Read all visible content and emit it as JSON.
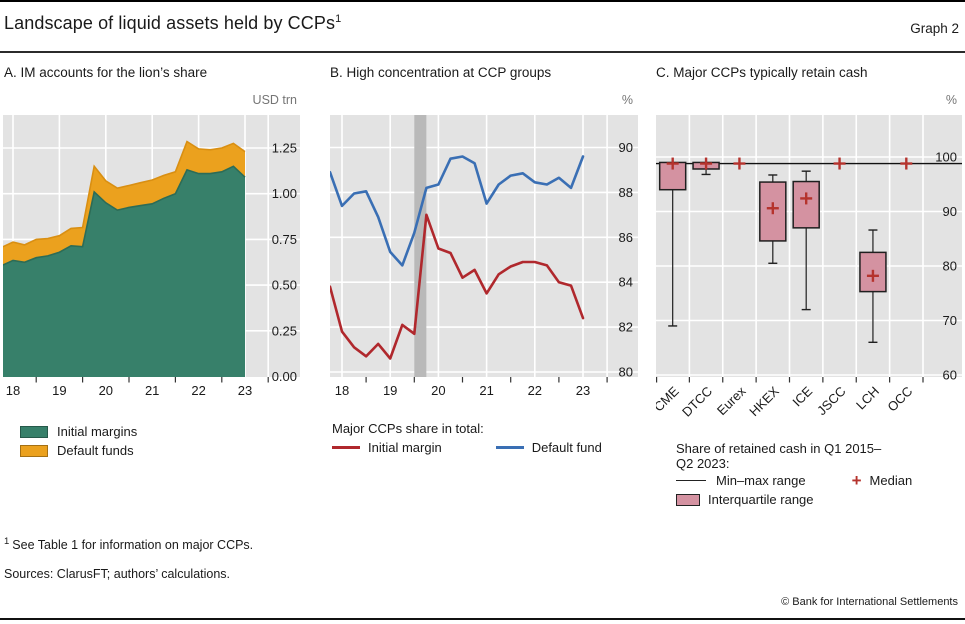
{
  "header": {
    "title": "Landscape of liquid assets held by CCPs",
    "title_footnote_marker": "1",
    "graph_label": "Graph 2"
  },
  "panels": {
    "a": {
      "title": "A. IM accounts for the lion’s share",
      "unit": "USD trn",
      "legend": [
        {
          "label": "Initial margins"
        },
        {
          "label": "Default funds"
        }
      ]
    },
    "b": {
      "title": "B. High concentration at CCP groups",
      "unit": "%",
      "legend_heading": "Major CCPs share in total:",
      "legend": [
        {
          "label": "Initial margin"
        },
        {
          "label": "Default fund"
        }
      ]
    },
    "c": {
      "title": "C. Major CCPs typically retain cash",
      "unit": "%",
      "legend_heading_line1": "Share of retained cash in Q1 2015–",
      "legend_heading_line2": "Q2 2023:",
      "legend_minmax": "Min–max range",
      "legend_median": "Median",
      "legend_iqr": "Interquartile range",
      "legend_plus": "+"
    }
  },
  "footnote": {
    "marker": "1",
    "text": "See Table 1 for information on major CCPs."
  },
  "sources_line": "Sources: ClarusFT; authors’ calculations.",
  "copyright_line": "© Bank for International Settlements",
  "colors": {
    "plot_bg": "#e3e3e3",
    "grid": "#ffffff",
    "band_gray": "#b9b9b9",
    "area_green": "#37806a",
    "area_green_edge": "#2c6c57",
    "area_orange": "#eba11e",
    "area_orange_edge": "#d98f12",
    "line_red": "#b0282d",
    "line_blue": "#3a6fb4",
    "box_fill": "#d492a1",
    "box_edge": "#1f1f1f",
    "median_red": "#b5332d",
    "axis_text": "#1a1a1a",
    "unit_text": "#757575"
  },
  "chart_data": [
    {
      "type": "area",
      "panel": "A",
      "title": "A. IM accounts for the lion’s share",
      "ylabel": "USD trn",
      "stacked": true,
      "x_start": 2017.75,
      "x_step": 0.25,
      "x_end": 2023.0,
      "x_gridline_years": [
        2018,
        2019,
        2020,
        2021,
        2022,
        2023,
        2023.5
      ],
      "x_label_years": [
        2018,
        2019,
        2020,
        2021,
        2022,
        2023
      ],
      "x_tick_labels": [
        "18",
        "19",
        "20",
        "21",
        "22",
        "23"
      ],
      "half_year_ticks": [
        2018.5,
        2019.5,
        2020.5,
        2021.5,
        2022.5,
        2023.5
      ],
      "ylim": [
        0,
        1.43
      ],
      "yticks": [
        0.0,
        0.25,
        0.5,
        0.75,
        1.0,
        1.25
      ],
      "ytick_labels": [
        "0.00",
        "0.25",
        "0.50",
        "0.75",
        "1.00",
        "1.25"
      ],
      "series": [
        {
          "name": "Initial margins",
          "values": [
            0.61,
            0.635,
            0.625,
            0.65,
            0.66,
            0.68,
            0.715,
            0.71,
            1.01,
            0.95,
            0.91,
            0.925,
            0.935,
            0.945,
            0.975,
            1.0,
            1.13,
            1.11,
            1.11,
            1.12,
            1.15,
            1.09
          ]
        },
        {
          "name": "Default funds",
          "values": [
            0.1,
            0.1,
            0.095,
            0.1,
            0.095,
            0.09,
            0.095,
            0.105,
            0.14,
            0.12,
            0.12,
            0.12,
            0.125,
            0.13,
            0.125,
            0.12,
            0.155,
            0.135,
            0.13,
            0.13,
            0.125,
            0.14
          ]
        }
      ]
    },
    {
      "type": "line",
      "panel": "B",
      "title": "B. High concentration at CCP groups",
      "ylabel": "%",
      "x_start": 2017.75,
      "x_step": 0.25,
      "x_end": 2023.0,
      "x_gridline_years": [
        2018,
        2019,
        2020,
        2021,
        2022,
        2023,
        2023.5
      ],
      "x_label_years": [
        2018,
        2019,
        2020,
        2021,
        2022,
        2023
      ],
      "x_tick_labels": [
        "18",
        "19",
        "20",
        "21",
        "22",
        "23"
      ],
      "half_year_ticks": [
        2018.5,
        2019.5,
        2020.5,
        2021.5,
        2022.5,
        2023.5
      ],
      "ylim": [
        79.8,
        91.5
      ],
      "yticks": [
        80,
        82,
        84,
        86,
        88,
        90
      ],
      "ytick_labels": [
        "80",
        "82",
        "84",
        "86",
        "88",
        "90"
      ],
      "shaded_band_x": [
        2019.5,
        2019.75
      ],
      "series": [
        {
          "name": "Initial margin",
          "values": [
            83.8,
            81.8,
            81.1,
            80.7,
            81.25,
            80.6,
            82.1,
            81.7,
            87.0,
            85.5,
            85.3,
            84.2,
            84.55,
            83.5,
            84.35,
            84.7,
            84.9,
            84.9,
            84.75,
            84.0,
            83.85,
            82.4
          ]
        },
        {
          "name": "Default fund",
          "values": [
            88.9,
            87.4,
            87.95,
            88.05,
            86.9,
            85.35,
            84.75,
            86.2,
            88.2,
            88.35,
            89.5,
            89.6,
            89.3,
            87.5,
            88.35,
            88.75,
            88.85,
            88.45,
            88.35,
            88.65,
            88.2,
            89.6
          ]
        }
      ]
    },
    {
      "type": "boxplot",
      "panel": "C",
      "title": "C. Major CCPs typically retain cash",
      "ylabel": "%",
      "categories": [
        "CME",
        "DTCC",
        "Eurex",
        "HKEX",
        "ICE",
        "JSCC",
        "LCH",
        "OCC"
      ],
      "ylim": [
        59.6,
        107.7
      ],
      "yticks": [
        60,
        70,
        80,
        90,
        100
      ],
      "ytick_labels": [
        "60",
        "70",
        "80",
        "90",
        "100"
      ],
      "reference_line": 98.8,
      "boxes": [
        {
          "category": "CME",
          "min": 69.0,
          "q1": 94.0,
          "median": 98.8,
          "q3": 99.0,
          "max": 99.0
        },
        {
          "category": "DTCC",
          "min": 96.8,
          "q1": 97.8,
          "median": 98.8,
          "q3": 99.0,
          "max": 99.0
        },
        {
          "category": "Eurex",
          "min": 98.6,
          "q1": 98.7,
          "median": 98.8,
          "q3": 98.9,
          "max": 99.0
        },
        {
          "category": "HKEX",
          "min": 80.5,
          "q1": 84.6,
          "median": 90.6,
          "q3": 95.4,
          "max": 96.7
        },
        {
          "category": "ICE",
          "min": 72.0,
          "q1": 87.0,
          "median": 92.4,
          "q3": 95.5,
          "max": 97.4
        },
        {
          "category": "JSCC",
          "min": 98.6,
          "q1": 98.7,
          "median": 98.8,
          "q3": 98.9,
          "max": 99.0
        },
        {
          "category": "LCH",
          "min": 66.0,
          "q1": 75.3,
          "median": 78.2,
          "q3": 82.5,
          "max": 86.6
        },
        {
          "category": "OCC",
          "min": 98.6,
          "q1": 98.7,
          "median": 98.8,
          "q3": 98.9,
          "max": 99.0
        }
      ]
    }
  ]
}
